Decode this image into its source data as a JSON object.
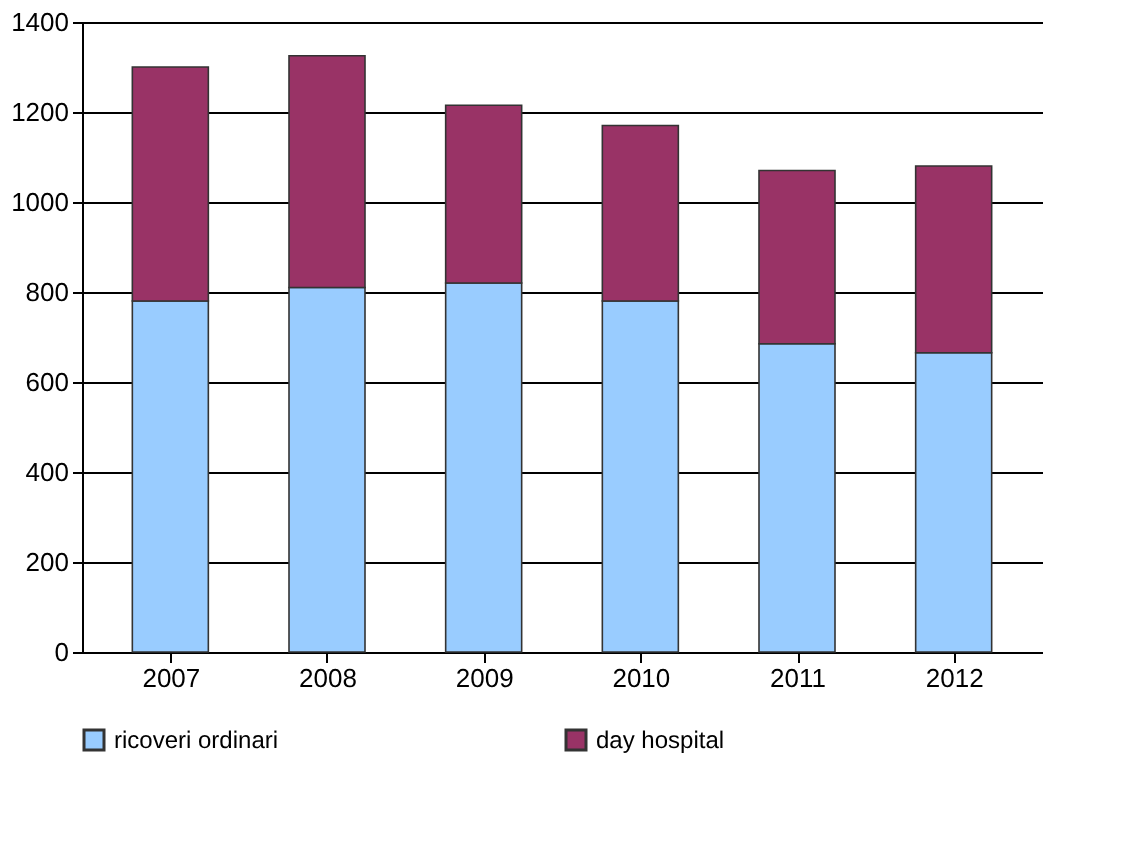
{
  "chart_data": {
    "type": "bar",
    "stacked": true,
    "categories": [
      "2007",
      "2008",
      "2009",
      "2010",
      "2011",
      "2012"
    ],
    "series": [
      {
        "name": "ricoveri ordinari",
        "color": "#99ccff",
        "values": [
          780,
          810,
          820,
          780,
          685,
          665
        ]
      },
      {
        "name": "day hospital",
        "color": "#993366",
        "values": [
          520,
          515,
          395,
          390,
          385,
          415
        ]
      }
    ],
    "ylim": [
      0,
      1400
    ],
    "yticks": [
      0,
      200,
      400,
      600,
      800,
      1000,
      1200,
      1400
    ],
    "grid": "y",
    "legend": "bottom"
  }
}
